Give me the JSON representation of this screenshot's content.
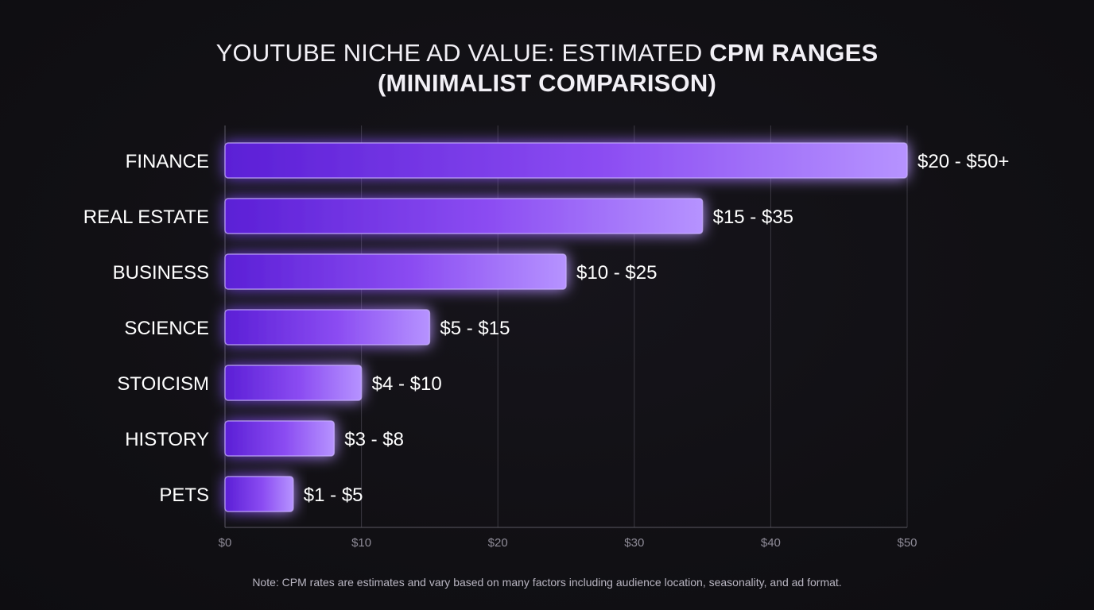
{
  "chart_data": {
    "type": "bar",
    "orientation": "horizontal",
    "title_part1": "YOUTUBE NICHE AD VALUE: ESTIMATED ",
    "title_part2": "CPM RANGES",
    "title_line2": "(MINIMALIST COMPARISON)",
    "categories": [
      "FINANCE",
      "REAL ESTATE",
      "BUSINESS",
      "SCIENCE",
      "STOICISM",
      "HISTORY",
      "PETS"
    ],
    "values": [
      50,
      35,
      25,
      15,
      10,
      8,
      5
    ],
    "data_labels": [
      "$20 - $50+",
      "$15 - $35",
      "$10 - $25",
      "$5 - $15",
      "$4 - $10",
      "$3 - $8",
      "$1 - $5"
    ],
    "x_ticks": [
      0,
      10,
      20,
      30,
      40,
      50
    ],
    "x_tick_labels": [
      "$0",
      "$10",
      "$20",
      "$30",
      "$40",
      "$50"
    ],
    "xlim": [
      0,
      50
    ],
    "grid": "vertical",
    "note": "Note: CPM rates are estimates and vary based on many factors including audience location, seasonality, and ad format.",
    "colors": {
      "background": "#111014",
      "bar_start": "#5b1fd6",
      "bar_mid": "#8b4cf2",
      "bar_end": "#b693ff",
      "bar_border": "#c9b0ff",
      "glow": "#8a4dff",
      "grid": "#3a3840",
      "axis": "#5a5862",
      "tick_text": "#8f8c98",
      "label_text": "#ffffff"
    }
  }
}
